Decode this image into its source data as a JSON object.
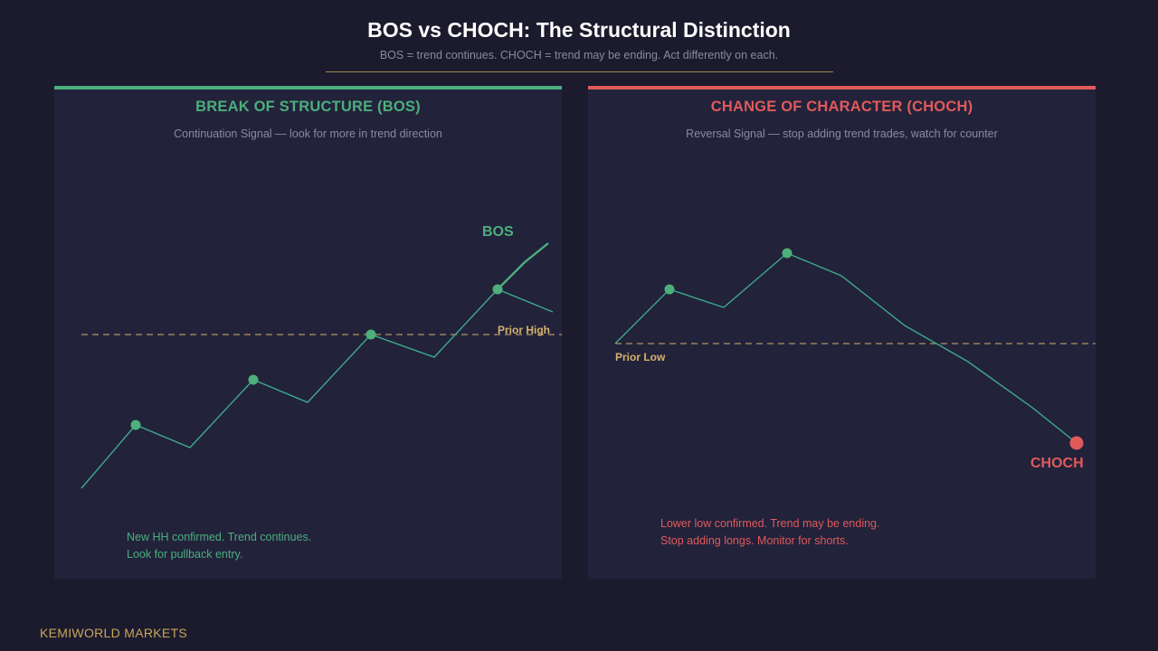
{
  "header": {
    "title": "BOS vs CHOCH: The Structural Distinction",
    "subtitle": "BOS = trend continues.  CHOCH = trend may be ending.  Act differently on each."
  },
  "colors": {
    "bullish": "#4caf7c",
    "bearish": "#e05a5a",
    "level": "#d4b26a",
    "line": "#3daa8a"
  },
  "bos_panel": {
    "title": "BREAK OF STRUCTURE (BOS)",
    "subtitle": "Continuation Signal — look for more in trend direction",
    "marker_label": "BOS",
    "level_label": "Prior High",
    "note_line1": "New HH confirmed. Trend continues.",
    "note_line2": "Look for pullback entry."
  },
  "choch_panel": {
    "title": "CHANGE OF CHARACTER (CHOCH)",
    "subtitle": "Reversal Signal — stop adding trend trades, watch for counter",
    "marker_label": "CHOCH",
    "level_label": "Prior Low",
    "note_line1": "Lower low confirmed. Trend may be ending.",
    "note_line2": "Stop adding longs. Monitor for shorts."
  },
  "footer": {
    "brand": "KEMIWORLD MARKETS"
  }
}
